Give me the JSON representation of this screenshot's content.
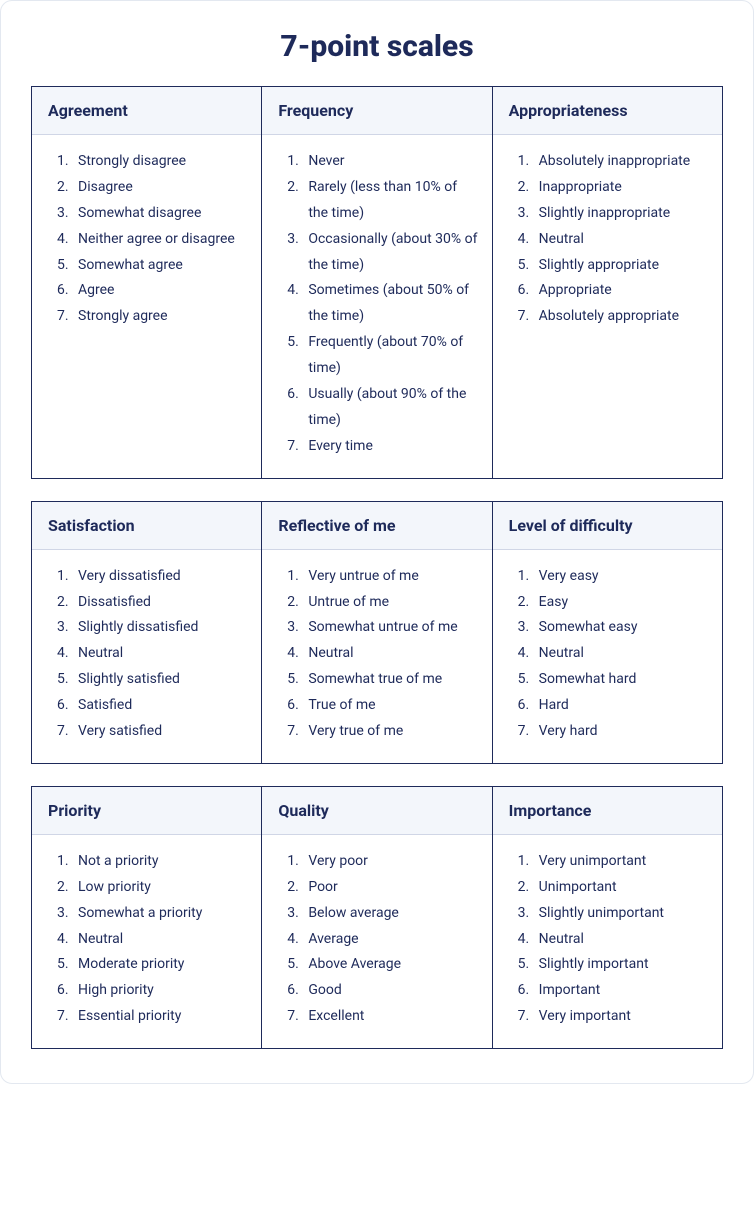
{
  "title": "7-point scales",
  "colors": {
    "text": "#1e2a5a",
    "border": "#1e2a5a",
    "header_bg": "#f3f6fb",
    "header_divider": "#d0d6e6",
    "card_border": "#e3e8f0",
    "background": "#ffffff"
  },
  "typography": {
    "title_fontsize": 30,
    "title_weight": 800,
    "header_fontsize": 16,
    "header_weight": 700,
    "item_fontsize": 14,
    "line_height": 1.85
  },
  "layout": {
    "columns_per_group": 3,
    "groups": 3,
    "card_radius": 12
  },
  "groups": [
    {
      "columns": [
        {
          "title": "Agreement",
          "items": [
            "Strongly disagree",
            "Disagree",
            "Somewhat disagree",
            "Neither agree or disagree",
            "Somewhat agree",
            "Agree",
            "Strongly agree"
          ]
        },
        {
          "title": "Frequency",
          "items": [
            "Never",
            "Rarely (less than 10% of the time)",
            "Occasionally (about 30% of the time)",
            "Sometimes (about 50% of the time)",
            "Frequently (about 70% of time)",
            "Usually (about 90% of the time)",
            "Every time"
          ]
        },
        {
          "title": "Appropriateness",
          "items": [
            "Absolutely inappropriate",
            "Inappropriate",
            "Slightly inappropriate",
            "Neutral",
            "Slightly appropriate",
            "Appropriate",
            "Absolutely appropriate"
          ]
        }
      ]
    },
    {
      "columns": [
        {
          "title": "Satisfaction",
          "items": [
            "Very dissatisfied",
            "Dissatisfied",
            "Slightly dissatisfied",
            "Neutral",
            "Slightly satisfied",
            "Satisfied",
            "Very satisfied"
          ]
        },
        {
          "title": "Reflective of me",
          "items": [
            "Very untrue of me",
            "Untrue of me",
            "Somewhat untrue of me",
            "Neutral",
            "Somewhat true of me",
            "True of me",
            "Very true of me"
          ]
        },
        {
          "title": "Level of difficulty",
          "items": [
            "Very easy",
            "Easy",
            "Somewhat easy",
            "Neutral",
            "Somewhat hard",
            "Hard",
            "Very hard"
          ]
        }
      ]
    },
    {
      "columns": [
        {
          "title": "Priority",
          "items": [
            "Not a priority",
            "Low priority",
            "Somewhat a priority",
            "Neutral",
            "Moderate priority",
            "High priority",
            "Essential priority"
          ]
        },
        {
          "title": "Quality",
          "items": [
            "Very poor",
            "Poor",
            "Below average",
            "Average",
            "Above Average",
            "Good",
            "Excellent"
          ]
        },
        {
          "title": "Importance",
          "items": [
            "Very unimportant",
            "Unimportant",
            "Slightly unimportant",
            "Neutral",
            "Slightly important",
            "Important",
            "Very important"
          ]
        }
      ]
    }
  ]
}
